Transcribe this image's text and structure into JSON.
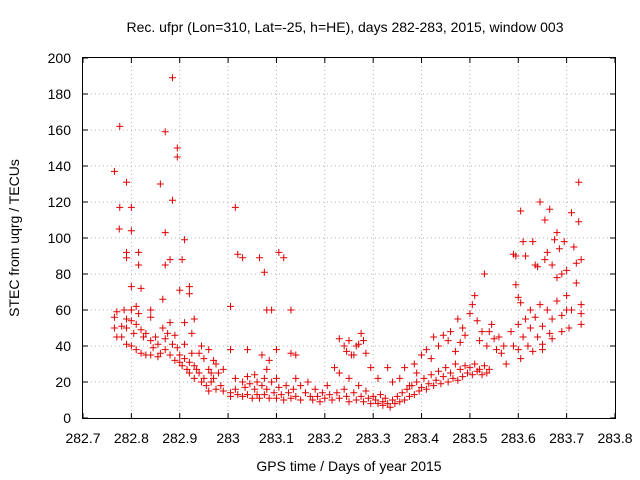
{
  "chart_data": {
    "type": "scatter",
    "title": "Rec. ufpr (Lon=310, Lat=-25, h=HE), days 282-283, 2015, window 003",
    "xlabel": "GPS time / Days of year 2015",
    "ylabel": "STEC from uqrg / TECUs",
    "xlim": [
      282.7,
      283.8
    ],
    "ylim": [
      0,
      200
    ],
    "x_ticks": [
      282.7,
      282.8,
      282.9,
      283.0,
      283.1,
      283.2,
      283.3,
      283.4,
      283.5,
      283.6,
      283.7,
      283.8
    ],
    "x_tick_labels": [
      "282.7",
      "282.8",
      "282.9",
      "283",
      "283.1",
      "283.2",
      "283.3",
      "283.4",
      "283.5",
      "283.6",
      "283.7",
      "283.8"
    ],
    "y_ticks": [
      0,
      20,
      40,
      60,
      80,
      100,
      120,
      140,
      160,
      180,
      200
    ],
    "y_tick_labels": [
      "0",
      "20",
      "40",
      "60",
      "80",
      "100",
      "120",
      "140",
      "160",
      "180",
      "200"
    ],
    "grid": true,
    "marker": "plus",
    "color": "#e00000",
    "points": [
      [
        282.765,
        137
      ],
      [
        282.776,
        162
      ],
      [
        282.776,
        117
      ],
      [
        282.775,
        105
      ],
      [
        282.79,
        131
      ],
      [
        282.8,
        117
      ],
      [
        282.8,
        104
      ],
      [
        282.79,
        92
      ],
      [
        282.79,
        89
      ],
      [
        282.8,
        73
      ],
      [
        282.815,
        92
      ],
      [
        282.815,
        85
      ],
      [
        282.82,
        72
      ],
      [
        282.815,
        58
      ],
      [
        282.81,
        62
      ],
      [
        282.84,
        60
      ],
      [
        282.84,
        56
      ],
      [
        282.86,
        130
      ],
      [
        282.865,
        66
      ],
      [
        282.87,
        159
      ],
      [
        282.87,
        103
      ],
      [
        282.885,
        189
      ],
      [
        282.885,
        121
      ],
      [
        282.895,
        150
      ],
      [
        282.895,
        145
      ],
      [
        282.88,
        88
      ],
      [
        282.87,
        85
      ],
      [
        282.9,
        71
      ],
      [
        282.905,
        88
      ],
      [
        282.91,
        99
      ],
      [
        282.92,
        73
      ],
      [
        282.92,
        69
      ],
      [
        282.93,
        55
      ],
      [
        282.925,
        47
      ],
      [
        282.91,
        53
      ],
      [
        282.765,
        56
      ],
      [
        282.77,
        59
      ],
      [
        282.765,
        50
      ],
      [
        282.77,
        45
      ],
      [
        282.78,
        51
      ],
      [
        282.78,
        45
      ],
      [
        282.785,
        60
      ],
      [
        282.79,
        55
      ],
      [
        282.79,
        50
      ],
      [
        282.79,
        41
      ],
      [
        282.8,
        60
      ],
      [
        282.8,
        54
      ],
      [
        282.8,
        40
      ],
      [
        282.805,
        47
      ],
      [
        282.81,
        38
      ],
      [
        282.81,
        52
      ],
      [
        282.82,
        49
      ],
      [
        282.82,
        36
      ],
      [
        282.825,
        45
      ],
      [
        282.83,
        47
      ],
      [
        282.83,
        35
      ],
      [
        282.84,
        43
      ],
      [
        282.845,
        39
      ],
      [
        282.84,
        35
      ],
      [
        282.85,
        45
      ],
      [
        282.855,
        41
      ],
      [
        282.855,
        34
      ],
      [
        282.86,
        36
      ],
      [
        282.865,
        50
      ],
      [
        282.87,
        44
      ],
      [
        282.87,
        38
      ],
      [
        282.875,
        47
      ],
      [
        282.88,
        53
      ],
      [
        282.88,
        35
      ],
      [
        282.885,
        41
      ],
      [
        282.89,
        32
      ],
      [
        282.89,
        46
      ],
      [
        282.895,
        39
      ],
      [
        282.9,
        31
      ],
      [
        282.9,
        35
      ],
      [
        282.905,
        29
      ],
      [
        282.91,
        41
      ],
      [
        282.91,
        33
      ],
      [
        282.915,
        27
      ],
      [
        282.92,
        31
      ],
      [
        282.92,
        25
      ],
      [
        282.925,
        36
      ],
      [
        282.93,
        22
      ],
      [
        282.93,
        29
      ],
      [
        282.935,
        27
      ],
      [
        282.94,
        36
      ],
      [
        282.94,
        25
      ],
      [
        282.945,
        20
      ],
      [
        282.95,
        33
      ],
      [
        282.95,
        22
      ],
      [
        282.955,
        18
      ],
      [
        282.96,
        27
      ],
      [
        282.96,
        15
      ],
      [
        282.965,
        25
      ],
      [
        282.965,
        20
      ],
      [
        282.97,
        32
      ],
      [
        282.97,
        22
      ],
      [
        282.975,
        30
      ],
      [
        282.975,
        16
      ],
      [
        282.98,
        25
      ],
      [
        282.985,
        18
      ],
      [
        282.99,
        27
      ],
      [
        282.99,
        15
      ],
      [
        282.945,
        40
      ],
      [
        282.96,
        38
      ],
      [
        283.005,
        62
      ],
      [
        283.015,
        117
      ],
      [
        283.02,
        91
      ],
      [
        283.03,
        89
      ],
      [
        283.065,
        89
      ],
      [
        283.075,
        81
      ],
      [
        283.08,
        60
      ],
      [
        283.09,
        60
      ],
      [
        283.105,
        92
      ],
      [
        283.115,
        89
      ],
      [
        283.13,
        60
      ],
      [
        283.005,
        38
      ],
      [
        283.04,
        38
      ],
      [
        283.07,
        35
      ],
      [
        283.08,
        27
      ],
      [
        283.085,
        32
      ],
      [
        283.1,
        38
      ],
      [
        283.13,
        36
      ],
      [
        283.14,
        35
      ],
      [
        283.005,
        14
      ],
      [
        283.005,
        12
      ],
      [
        283.015,
        22
      ],
      [
        283.015,
        16
      ],
      [
        283.02,
        13
      ],
      [
        283.03,
        20
      ],
      [
        283.03,
        12
      ],
      [
        283.035,
        17
      ],
      [
        283.04,
        23
      ],
      [
        283.04,
        13
      ],
      [
        283.045,
        19
      ],
      [
        283.05,
        11
      ],
      [
        283.055,
        24
      ],
      [
        283.055,
        16
      ],
      [
        283.06,
        20
      ],
      [
        283.06,
        13
      ],
      [
        283.065,
        11
      ],
      [
        283.07,
        18
      ],
      [
        283.075,
        22
      ],
      [
        283.075,
        13
      ],
      [
        283.08,
        16
      ],
      [
        283.085,
        11
      ],
      [
        283.09,
        20
      ],
      [
        283.095,
        14
      ],
      [
        283.1,
        11
      ],
      [
        283.1,
        22
      ],
      [
        283.105,
        17
      ],
      [
        283.11,
        13
      ],
      [
        283.115,
        10
      ],
      [
        283.12,
        18
      ],
      [
        283.125,
        14
      ],
      [
        283.13,
        11
      ],
      [
        283.135,
        16
      ],
      [
        283.14,
        22
      ],
      [
        283.14,
        12
      ],
      [
        283.15,
        18
      ],
      [
        283.15,
        10
      ],
      [
        283.16,
        14
      ],
      [
        283.165,
        20
      ],
      [
        283.17,
        12
      ],
      [
        283.175,
        10
      ],
      [
        283.18,
        16
      ],
      [
        283.185,
        12
      ],
      [
        283.19,
        9
      ],
      [
        283.195,
        14
      ],
      [
        283.2,
        11
      ],
      [
        283.205,
        18
      ],
      [
        283.21,
        13
      ],
      [
        283.215,
        10
      ],
      [
        283.22,
        28
      ],
      [
        283.225,
        14
      ],
      [
        283.23,
        25
      ],
      [
        283.23,
        11
      ],
      [
        283.24,
        16
      ],
      [
        283.245,
        12
      ],
      [
        283.25,
        22
      ],
      [
        283.25,
        9
      ],
      [
        283.255,
        35
      ],
      [
        283.26,
        14
      ],
      [
        283.265,
        10
      ],
      [
        283.27,
        18
      ],
      [
        283.275,
        12
      ],
      [
        283.28,
        9
      ],
      [
        283.285,
        15
      ],
      [
        283.29,
        11
      ],
      [
        283.295,
        8
      ],
      [
        283.3,
        12
      ],
      [
        283.305,
        10
      ],
      [
        283.31,
        8
      ],
      [
        283.315,
        13
      ],
      [
        283.32,
        9
      ],
      [
        283.32,
        7
      ],
      [
        283.325,
        11
      ],
      [
        283.33,
        8
      ],
      [
        283.335,
        6
      ],
      [
        283.34,
        10
      ],
      [
        283.345,
        8
      ],
      [
        283.35,
        12
      ],
      [
        283.355,
        9
      ],
      [
        283.36,
        14
      ],
      [
        283.365,
        10
      ],
      [
        283.37,
        16
      ],
      [
        283.375,
        12
      ],
      [
        283.38,
        18
      ],
      [
        283.385,
        13
      ],
      [
        283.39,
        20
      ],
      [
        283.395,
        15
      ],
      [
        283.4,
        17
      ],
      [
        283.405,
        22
      ],
      [
        283.41,
        16
      ],
      [
        283.415,
        19
      ],
      [
        283.42,
        24
      ],
      [
        283.425,
        18
      ],
      [
        283.43,
        21
      ],
      [
        283.435,
        26
      ],
      [
        283.44,
        19
      ],
      [
        283.445,
        23
      ],
      [
        283.45,
        28
      ],
      [
        283.455,
        20
      ],
      [
        283.46,
        25
      ],
      [
        283.465,
        22
      ],
      [
        283.47,
        30
      ],
      [
        283.475,
        21
      ],
      [
        283.48,
        27
      ],
      [
        283.485,
        23
      ],
      [
        283.49,
        29
      ],
      [
        283.495,
        25
      ],
      [
        283.5,
        28
      ],
      [
        283.505,
        24
      ],
      [
        283.51,
        30
      ],
      [
        283.515,
        26
      ],
      [
        283.52,
        27
      ],
      [
        283.525,
        24
      ],
      [
        283.53,
        29
      ],
      [
        283.535,
        25
      ],
      [
        283.54,
        27
      ],
      [
        283.23,
        44
      ],
      [
        283.24,
        40
      ],
      [
        283.245,
        37
      ],
      [
        283.25,
        43
      ],
      [
        283.26,
        35
      ],
      [
        283.265,
        40
      ],
      [
        283.27,
        41
      ],
      [
        283.275,
        47
      ],
      [
        283.28,
        43
      ],
      [
        283.285,
        36
      ],
      [
        283.295,
        28
      ],
      [
        283.31,
        22
      ],
      [
        283.33,
        28
      ],
      [
        283.34,
        20
      ],
      [
        283.355,
        22
      ],
      [
        283.365,
        28
      ],
      [
        283.375,
        18
      ],
      [
        283.385,
        30
      ],
      [
        283.39,
        25
      ],
      [
        283.4,
        35
      ],
      [
        283.41,
        38
      ],
      [
        283.42,
        33
      ],
      [
        283.425,
        45
      ],
      [
        283.435,
        40
      ],
      [
        283.445,
        46
      ],
      [
        283.455,
        43
      ],
      [
        283.46,
        48
      ],
      [
        283.47,
        37
      ],
      [
        283.475,
        55
      ],
      [
        283.48,
        42
      ],
      [
        283.485,
        50
      ],
      [
        283.49,
        46
      ],
      [
        283.5,
        58
      ],
      [
        283.505,
        63
      ],
      [
        283.51,
        68
      ],
      [
        283.515,
        54
      ],
      [
        283.52,
        43
      ],
      [
        283.525,
        48
      ],
      [
        283.53,
        80
      ],
      [
        283.535,
        40
      ],
      [
        283.54,
        48
      ],
      [
        283.545,
        52
      ],
      [
        283.55,
        44
      ],
      [
        283.555,
        38
      ],
      [
        283.56,
        45
      ],
      [
        283.565,
        36
      ],
      [
        283.57,
        40
      ],
      [
        283.575,
        30
      ],
      [
        283.59,
        91
      ],
      [
        283.595,
        90
      ],
      [
        283.595,
        74
      ],
      [
        283.6,
        67
      ],
      [
        283.605,
        115
      ],
      [
        283.605,
        64
      ],
      [
        283.61,
        98
      ],
      [
        283.615,
        90
      ],
      [
        283.6,
        52
      ],
      [
        283.6,
        38
      ],
      [
        283.605,
        33
      ],
      [
        283.61,
        45
      ],
      [
        283.615,
        55
      ],
      [
        283.62,
        40
      ],
      [
        283.625,
        60
      ],
      [
        283.625,
        50
      ],
      [
        283.63,
        37
      ],
      [
        283.63,
        98
      ],
      [
        283.635,
        85
      ],
      [
        283.635,
        56
      ],
      [
        283.64,
        45
      ],
      [
        283.64,
        84
      ],
      [
        283.645,
        120
      ],
      [
        283.645,
        63
      ],
      [
        283.65,
        51
      ],
      [
        283.65,
        41
      ],
      [
        283.655,
        88
      ],
      [
        283.655,
        110
      ],
      [
        283.66,
        92
      ],
      [
        283.66,
        60
      ],
      [
        283.665,
        47
      ],
      [
        283.665,
        116
      ],
      [
        283.67,
        85
      ],
      [
        283.67,
        55
      ],
      [
        283.675,
        99
      ],
      [
        283.68,
        103
      ],
      [
        283.68,
        78
      ],
      [
        283.68,
        65
      ],
      [
        283.685,
        94
      ],
      [
        283.69,
        80
      ],
      [
        283.69,
        57
      ],
      [
        283.695,
        98
      ],
      [
        283.7,
        82
      ],
      [
        283.7,
        68
      ],
      [
        283.705,
        50
      ],
      [
        283.71,
        60
      ],
      [
        283.71,
        114
      ],
      [
        283.715,
        95
      ],
      [
        283.72,
        86
      ],
      [
        283.72,
        75
      ],
      [
        283.725,
        131
      ],
      [
        283.725,
        109
      ],
      [
        283.73,
        88
      ],
      [
        283.73,
        63
      ],
      [
        283.73,
        58
      ],
      [
        283.73,
        52
      ],
      [
        283.7,
        60
      ],
      [
        283.69,
        48
      ],
      [
        283.67,
        44
      ],
      [
        283.65,
        38
      ],
      [
        283.59,
        40
      ],
      [
        283.585,
        48
      ]
    ]
  }
}
